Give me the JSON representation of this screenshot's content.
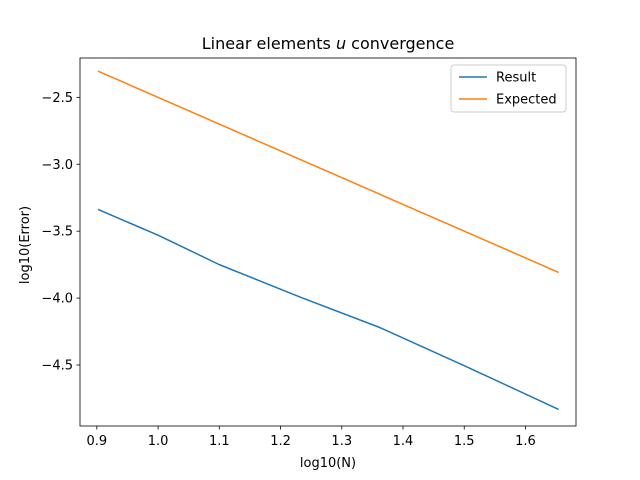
{
  "chart_data": {
    "type": "line",
    "title_prefix": "Linear elements ",
    "title_var": "u",
    "title_suffix": " convergence",
    "xlabel": "log10(N)",
    "ylabel": "log10(Error)",
    "xlim": [
      0.8725,
      1.6825
    ],
    "ylim": [
      -4.956,
      -2.206
    ],
    "xticks": [
      0.9,
      1.0,
      1.1,
      1.2,
      1.3,
      1.4,
      1.5,
      1.6
    ],
    "xtick_labels": [
      "0.9",
      "1.0",
      "1.1",
      "1.2",
      "1.3",
      "1.4",
      "1.5",
      "1.6"
    ],
    "yticks": [
      -2.5,
      -3.0,
      -3.5,
      -4.0,
      -4.5
    ],
    "ytick_labels": [
      "−2.5",
      "−3.0",
      "−3.5",
      "−4.0",
      "−4.5"
    ],
    "grid": false,
    "legend_position": "top-right",
    "series": [
      {
        "name": "Result",
        "color": "#1f77b4",
        "x": [
          0.903,
          1.0,
          1.1,
          1.235,
          1.362,
          1.5,
          1.653
        ],
        "y": [
          -3.34,
          -3.53,
          -3.75,
          -3.998,
          -4.22,
          -4.505,
          -4.83
        ]
      },
      {
        "name": "Expected",
        "color": "#ff7f0e",
        "x": [
          0.903,
          1.653
        ],
        "y": [
          -2.306,
          -3.806
        ]
      }
    ]
  }
}
